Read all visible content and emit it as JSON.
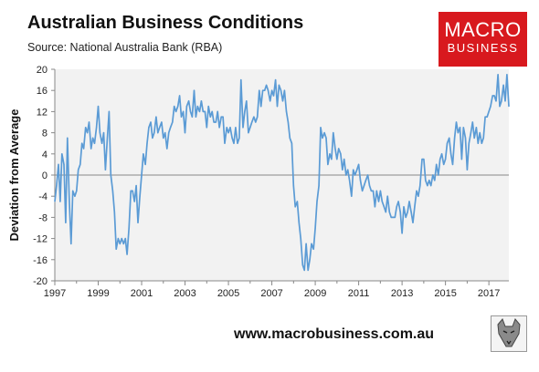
{
  "header": {
    "title": "Australian Business Conditions",
    "source": "Source: National Australia Bank (RBA)"
  },
  "logo": {
    "line1": "MACRO",
    "line2": "BUSINESS",
    "color": "#d8191e"
  },
  "footer": {
    "url": "www.macrobusiness.com.au",
    "emblem": "wolf-emblem-icon"
  },
  "chart_data": {
    "type": "line",
    "title": "Australian Business Conditions",
    "ylabel": "Deviation from Average",
    "xlabel": "",
    "ylim": [
      -20,
      20
    ],
    "yticks": [
      -20,
      -16,
      -12,
      -8,
      -4,
      0,
      4,
      8,
      12,
      16,
      20
    ],
    "xlim": [
      1997.0,
      2017.92
    ],
    "xticks": [
      "1997",
      "1999",
      "2001",
      "2003",
      "2005",
      "2007",
      "2009",
      "2011",
      "2013",
      "2015",
      "2017"
    ],
    "grid": false,
    "legend": "none",
    "line_color": "#5b9bd5",
    "plot_background": "#f2f2f2",
    "series": [
      {
        "values": [
          [
            1997.0,
            -5
          ],
          [
            1997.08,
            -2
          ],
          [
            1997.17,
            2
          ],
          [
            1997.25,
            -5
          ],
          [
            1997.33,
            4
          ],
          [
            1997.42,
            2
          ],
          [
            1997.5,
            -9
          ],
          [
            1997.58,
            7
          ],
          [
            1997.67,
            -5
          ],
          [
            1997.75,
            -13
          ],
          [
            1997.83,
            -3
          ],
          [
            1997.92,
            -4
          ],
          [
            1998.0,
            -3
          ],
          [
            1998.08,
            1
          ],
          [
            1998.17,
            2
          ],
          [
            1998.25,
            6
          ],
          [
            1998.33,
            5
          ],
          [
            1998.42,
            9
          ],
          [
            1998.5,
            8
          ],
          [
            1998.58,
            10
          ],
          [
            1998.67,
            5
          ],
          [
            1998.75,
            7
          ],
          [
            1998.83,
            6
          ],
          [
            1998.92,
            9
          ],
          [
            1999.0,
            13
          ],
          [
            1999.08,
            8
          ],
          [
            1999.17,
            6
          ],
          [
            1999.25,
            8
          ],
          [
            1999.33,
            1
          ],
          [
            1999.42,
            7
          ],
          [
            1999.5,
            12
          ],
          [
            1999.58,
            0
          ],
          [
            1999.67,
            -3
          ],
          [
            1999.75,
            -7
          ],
          [
            1999.83,
            -14
          ],
          [
            1999.92,
            -12
          ],
          [
            2000.0,
            -13
          ],
          [
            2000.08,
            -12
          ],
          [
            2000.17,
            -13
          ],
          [
            2000.25,
            -12
          ],
          [
            2000.33,
            -15
          ],
          [
            2000.42,
            -10
          ],
          [
            2000.5,
            -3
          ],
          [
            2000.58,
            -3
          ],
          [
            2000.67,
            -5
          ],
          [
            2000.75,
            -2
          ],
          [
            2000.83,
            -9
          ],
          [
            2000.92,
            -4
          ],
          [
            2001.0,
            0
          ],
          [
            2001.08,
            4
          ],
          [
            2001.17,
            2
          ],
          [
            2001.25,
            6
          ],
          [
            2001.33,
            9
          ],
          [
            2001.42,
            10
          ],
          [
            2001.5,
            7
          ],
          [
            2001.58,
            8
          ],
          [
            2001.67,
            11
          ],
          [
            2001.75,
            8
          ],
          [
            2001.83,
            9
          ],
          [
            2001.92,
            10
          ],
          [
            2002.0,
            7
          ],
          [
            2002.08,
            8
          ],
          [
            2002.17,
            5
          ],
          [
            2002.25,
            8
          ],
          [
            2002.33,
            9
          ],
          [
            2002.42,
            10
          ],
          [
            2002.5,
            13
          ],
          [
            2002.58,
            12
          ],
          [
            2002.67,
            13
          ],
          [
            2002.75,
            15
          ],
          [
            2002.83,
            11
          ],
          [
            2002.92,
            12
          ],
          [
            2003.0,
            8
          ],
          [
            2003.08,
            13
          ],
          [
            2003.17,
            14
          ],
          [
            2003.25,
            12
          ],
          [
            2003.33,
            11
          ],
          [
            2003.42,
            16
          ],
          [
            2003.5,
            11
          ],
          [
            2003.58,
            13
          ],
          [
            2003.67,
            12
          ],
          [
            2003.75,
            14
          ],
          [
            2003.83,
            12
          ],
          [
            2003.92,
            12
          ],
          [
            2004.0,
            9
          ],
          [
            2004.08,
            13
          ],
          [
            2004.17,
            11
          ],
          [
            2004.25,
            12
          ],
          [
            2004.33,
            10
          ],
          [
            2004.42,
            10
          ],
          [
            2004.5,
            12
          ],
          [
            2004.58,
            9
          ],
          [
            2004.67,
            11
          ],
          [
            2004.75,
            11
          ],
          [
            2004.83,
            6
          ],
          [
            2004.92,
            9
          ],
          [
            2005.0,
            8
          ],
          [
            2005.08,
            9
          ],
          [
            2005.17,
            7
          ],
          [
            2005.25,
            6
          ],
          [
            2005.33,
            9
          ],
          [
            2005.42,
            6
          ],
          [
            2005.5,
            7
          ],
          [
            2005.58,
            18
          ],
          [
            2005.67,
            9
          ],
          [
            2005.75,
            12
          ],
          [
            2005.83,
            14
          ],
          [
            2005.92,
            8
          ],
          [
            2006.0,
            9
          ],
          [
            2006.08,
            10
          ],
          [
            2006.17,
            11
          ],
          [
            2006.25,
            10
          ],
          [
            2006.33,
            11
          ],
          [
            2006.42,
            16
          ],
          [
            2006.5,
            13
          ],
          [
            2006.58,
            16
          ],
          [
            2006.67,
            16
          ],
          [
            2006.75,
            17
          ],
          [
            2006.83,
            16
          ],
          [
            2006.92,
            14
          ],
          [
            2007.0,
            16
          ],
          [
            2007.08,
            15
          ],
          [
            2007.17,
            18
          ],
          [
            2007.25,
            13
          ],
          [
            2007.33,
            17
          ],
          [
            2007.42,
            16
          ],
          [
            2007.5,
            14
          ],
          [
            2007.58,
            16
          ],
          [
            2007.67,
            12
          ],
          [
            2007.75,
            10
          ],
          [
            2007.83,
            7
          ],
          [
            2007.92,
            6
          ],
          [
            2008.0,
            -2
          ],
          [
            2008.08,
            -6
          ],
          [
            2008.17,
            -5
          ],
          [
            2008.25,
            -9
          ],
          [
            2008.33,
            -12
          ],
          [
            2008.42,
            -17
          ],
          [
            2008.5,
            -18
          ],
          [
            2008.58,
            -13
          ],
          [
            2008.67,
            -18
          ],
          [
            2008.75,
            -16
          ],
          [
            2008.83,
            -13
          ],
          [
            2008.92,
            -14
          ],
          [
            2009.0,
            -10
          ],
          [
            2009.08,
            -5
          ],
          [
            2009.17,
            -2
          ],
          [
            2009.25,
            9
          ],
          [
            2009.33,
            7
          ],
          [
            2009.42,
            8
          ],
          [
            2009.5,
            7
          ],
          [
            2009.58,
            2
          ],
          [
            2009.67,
            4
          ],
          [
            2009.75,
            3
          ],
          [
            2009.83,
            8
          ],
          [
            2009.92,
            5
          ],
          [
            2010.0,
            3
          ],
          [
            2010.08,
            5
          ],
          [
            2010.17,
            4
          ],
          [
            2010.25,
            1
          ],
          [
            2010.33,
            3
          ],
          [
            2010.42,
            0
          ],
          [
            2010.5,
            1
          ],
          [
            2010.58,
            -1
          ],
          [
            2010.67,
            -4
          ],
          [
            2010.75,
            1
          ],
          [
            2010.83,
            0
          ],
          [
            2010.92,
            1
          ],
          [
            2011.0,
            2
          ],
          [
            2011.08,
            -1
          ],
          [
            2011.17,
            -3
          ],
          [
            2011.25,
            -2
          ],
          [
            2011.33,
            -1
          ],
          [
            2011.42,
            0
          ],
          [
            2011.5,
            -2
          ],
          [
            2011.58,
            -3
          ],
          [
            2011.67,
            -3
          ],
          [
            2011.75,
            -6
          ],
          [
            2011.83,
            -3
          ],
          [
            2011.92,
            -5
          ],
          [
            2012.0,
            -3
          ],
          [
            2012.08,
            -5
          ],
          [
            2012.17,
            -6
          ],
          [
            2012.25,
            -7
          ],
          [
            2012.33,
            -4
          ],
          [
            2012.42,
            -7
          ],
          [
            2012.5,
            -8
          ],
          [
            2012.58,
            -8
          ],
          [
            2012.67,
            -8
          ],
          [
            2012.75,
            -6
          ],
          [
            2012.83,
            -5
          ],
          [
            2012.92,
            -7
          ],
          [
            2013.0,
            -11
          ],
          [
            2013.08,
            -6
          ],
          [
            2013.17,
            -8
          ],
          [
            2013.25,
            -7
          ],
          [
            2013.33,
            -5
          ],
          [
            2013.42,
            -7
          ],
          [
            2013.5,
            -9
          ],
          [
            2013.58,
            -6
          ],
          [
            2013.67,
            -3
          ],
          [
            2013.75,
            -4
          ],
          [
            2013.83,
            -2
          ],
          [
            2013.92,
            3
          ],
          [
            2014.0,
            3
          ],
          [
            2014.08,
            -1
          ],
          [
            2014.17,
            -2
          ],
          [
            2014.25,
            -1
          ],
          [
            2014.33,
            -2
          ],
          [
            2014.42,
            0
          ],
          [
            2014.5,
            -1
          ],
          [
            2014.58,
            2
          ],
          [
            2014.67,
            0
          ],
          [
            2014.75,
            3
          ],
          [
            2014.83,
            4
          ],
          [
            2014.92,
            2
          ],
          [
            2015.0,
            3
          ],
          [
            2015.08,
            6
          ],
          [
            2015.17,
            7
          ],
          [
            2015.25,
            4
          ],
          [
            2015.33,
            2
          ],
          [
            2015.42,
            7
          ],
          [
            2015.5,
            10
          ],
          [
            2015.58,
            8
          ],
          [
            2015.67,
            9
          ],
          [
            2015.75,
            3
          ],
          [
            2015.83,
            9
          ],
          [
            2015.92,
            7
          ],
          [
            2016.0,
            1
          ],
          [
            2016.08,
            6
          ],
          [
            2016.17,
            8
          ],
          [
            2016.25,
            10
          ],
          [
            2016.33,
            7
          ],
          [
            2016.42,
            9
          ],
          [
            2016.5,
            6
          ],
          [
            2016.58,
            8
          ],
          [
            2016.67,
            6
          ],
          [
            2016.75,
            7
          ],
          [
            2016.83,
            11
          ],
          [
            2016.92,
            11
          ],
          [
            2017.0,
            12
          ],
          [
            2017.08,
            13
          ],
          [
            2017.17,
            15
          ],
          [
            2017.25,
            15
          ],
          [
            2017.33,
            14
          ],
          [
            2017.42,
            19
          ],
          [
            2017.5,
            13
          ],
          [
            2017.58,
            14
          ],
          [
            2017.67,
            17
          ],
          [
            2017.75,
            14
          ],
          [
            2017.83,
            19
          ],
          [
            2017.92,
            13
          ]
        ]
      }
    ]
  }
}
